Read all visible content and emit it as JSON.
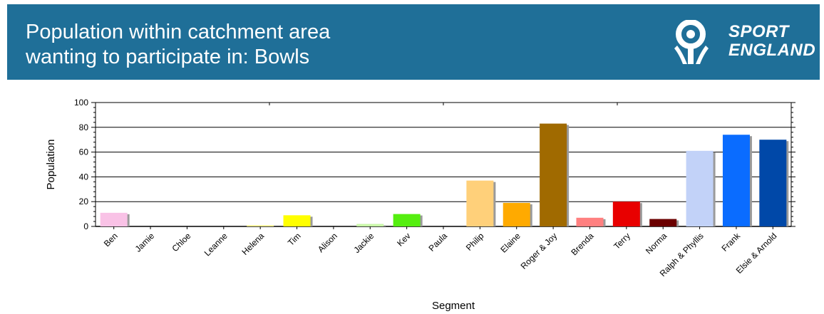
{
  "header": {
    "title_line1": "Population within catchment area",
    "title_line2": "wanting to participate in: Bowls",
    "logo": {
      "line1": "SPORT",
      "line2": "ENGLAND",
      "icon": "sport-england-figure-icon"
    }
  },
  "colors": {
    "banner": "#1f6f98",
    "text": "#ffffff"
  },
  "chart_data": {
    "type": "bar",
    "title": "",
    "xlabel": "Segment",
    "ylabel": "Population",
    "ylim": [
      0,
      100
    ],
    "yticks": [
      "0",
      "20",
      "40",
      "60",
      "80",
      "100"
    ],
    "grid": true,
    "categories": [
      "Ben",
      "Jamie",
      "Chloe",
      "Leanne",
      "Helena",
      "Tim",
      "Alison",
      "Jackie",
      "Kev",
      "Paula",
      "Philip",
      "Elaine",
      "Roger & Joy",
      "Brenda",
      "Terry",
      "Norma",
      "Ralph & Phyllis",
      "Frank",
      "Elsie & Arnold"
    ],
    "values": [
      11,
      0,
      0,
      0,
      1,
      9,
      0,
      2,
      10,
      0,
      37,
      19,
      83,
      7,
      20,
      6,
      61,
      74,
      70
    ],
    "bar_colors": [
      "#f9c2e6",
      "#e8e8e8",
      "#e8e8e8",
      "#e8e8e8",
      "#f3f08c",
      "#ffff00",
      "#e8e8e8",
      "#c9f7a8",
      "#55ee10",
      "#e8e8e8",
      "#ffd07a",
      "#ffaa00",
      "#a06a00",
      "#ff8080",
      "#e80000",
      "#6b0000",
      "#c2d2f8",
      "#0a6cff",
      "#0048a8"
    ]
  }
}
